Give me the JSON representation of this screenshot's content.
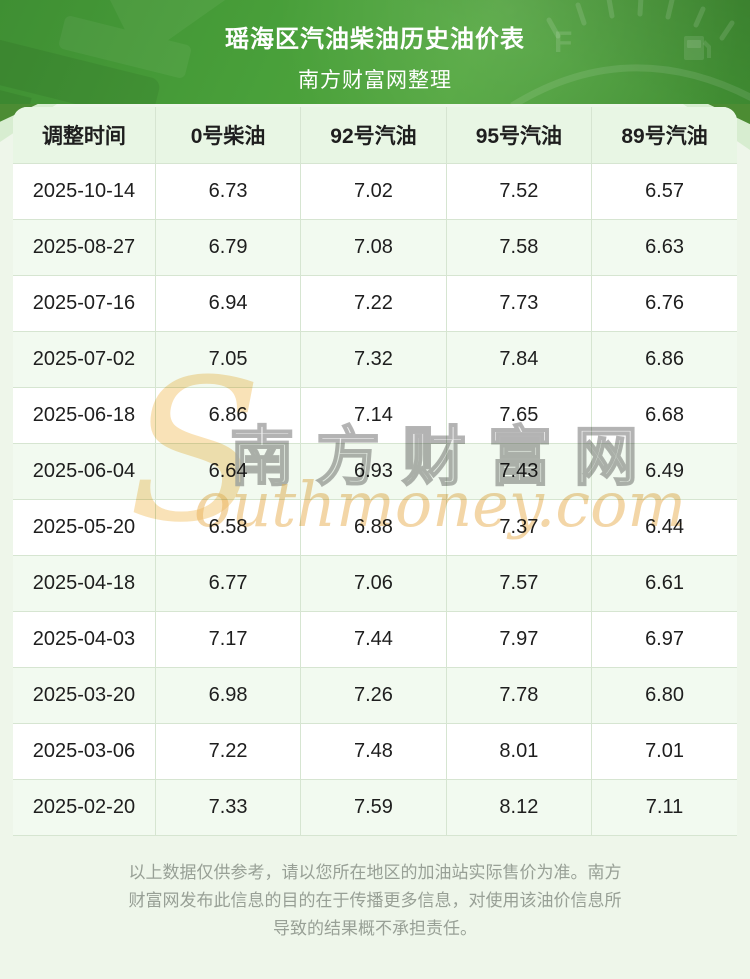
{
  "chart_data": {
    "type": "table",
    "title": "瑶海区汽油柴油历史油价表",
    "subtitle": "南方财富网整理",
    "columns": [
      "调整时间",
      "0号柴油",
      "92号汽油",
      "95号汽油",
      "89号汽油"
    ],
    "rows": [
      [
        "2025-10-14",
        "6.73",
        "7.02",
        "7.52",
        "6.57"
      ],
      [
        "2025-08-27",
        "6.79",
        "7.08",
        "7.58",
        "6.63"
      ],
      [
        "2025-07-16",
        "6.94",
        "7.22",
        "7.73",
        "6.76"
      ],
      [
        "2025-07-02",
        "7.05",
        "7.32",
        "7.84",
        "6.86"
      ],
      [
        "2025-06-18",
        "6.86",
        "7.14",
        "7.65",
        "6.68"
      ],
      [
        "2025-06-04",
        "6.64",
        "6.93",
        "7.43",
        "6.49"
      ],
      [
        "2025-05-20",
        "6.58",
        "6.88",
        "7.37",
        "6.44"
      ],
      [
        "2025-04-18",
        "6.77",
        "7.06",
        "7.57",
        "6.61"
      ],
      [
        "2025-04-03",
        "7.17",
        "7.44",
        "7.97",
        "6.97"
      ],
      [
        "2025-03-20",
        "6.98",
        "7.26",
        "7.78",
        "6.80"
      ],
      [
        "2025-03-06",
        "7.22",
        "7.48",
        "8.01",
        "7.01"
      ],
      [
        "2025-02-20",
        "7.33",
        "7.59",
        "8.12",
        "7.11"
      ]
    ],
    "legend_position": "none",
    "grid": true
  },
  "watermark": {
    "initial": "S",
    "cn": "南方财富网",
    "rest": "outhmoney.com"
  },
  "footer": {
    "lines": [
      "以上数据仅供参考，请以您所在地区的加油站实际售价为准。南方",
      "财富网发布此信息的目的在于传播更多信息，对使用该油价信息所",
      "导致的结果概不承担责任。"
    ]
  },
  "colors": {
    "banner_green": "#49a03a",
    "header_row_bg": "#e8f6e4",
    "alt_row_bg": "#f2faf0",
    "page_bg": "#eef6ea",
    "cell_border": "#d6e5d1",
    "watermark_orange": "#eab45f",
    "disclaimer_gray": "#98a096"
  }
}
